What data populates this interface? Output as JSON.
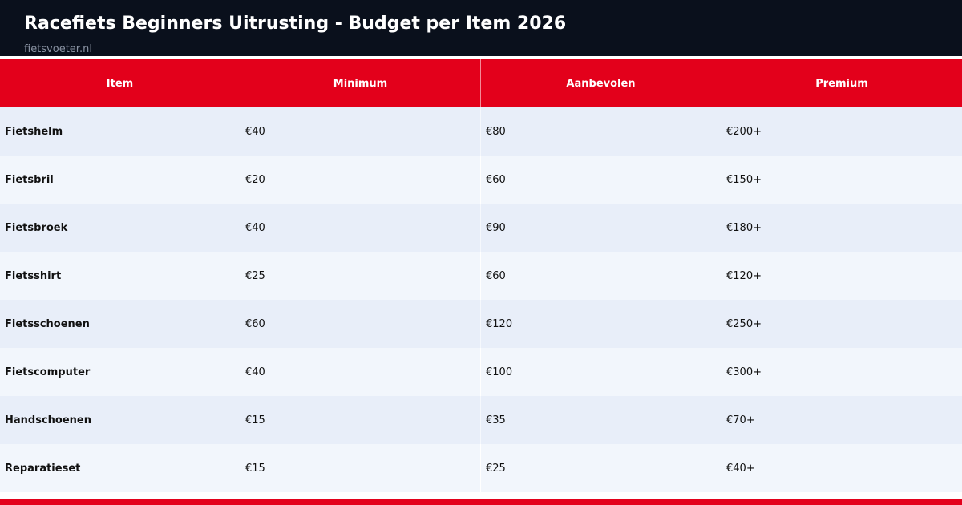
{
  "header": {
    "title": "Racefiets Beginners Uitrusting - Budget per Item 2026",
    "source": "fietsvoeter.nl"
  },
  "colors": {
    "header_bg": "#0a101c",
    "accent": "#e3001b",
    "row_odd": "#e8eef9",
    "row_even": "#f2f6fc"
  },
  "chart_data": {
    "type": "table",
    "title": "Racefiets Beginners Uitrusting - Budget per Item 2026",
    "columns": [
      "Item",
      "Minimum",
      "Aanbevolen",
      "Premium"
    ],
    "rows": [
      [
        "Fietshelm",
        "€40",
        "€80",
        "€200+"
      ],
      [
        "Fietsbril",
        "€20",
        "€60",
        "€150+"
      ],
      [
        "Fietsbroek",
        "€40",
        "€90",
        "€180+"
      ],
      [
        "Fietsshirt",
        "€25",
        "€60",
        "€120+"
      ],
      [
        "Fietsschoenen",
        "€60",
        "€120",
        "€250+"
      ],
      [
        "Fietscomputer",
        "€40",
        "€100",
        "€300+"
      ],
      [
        "Handschoenen",
        "€15",
        "€35",
        "€70+"
      ],
      [
        "Reparatieset",
        "€15",
        "€25",
        "€40+"
      ]
    ]
  }
}
